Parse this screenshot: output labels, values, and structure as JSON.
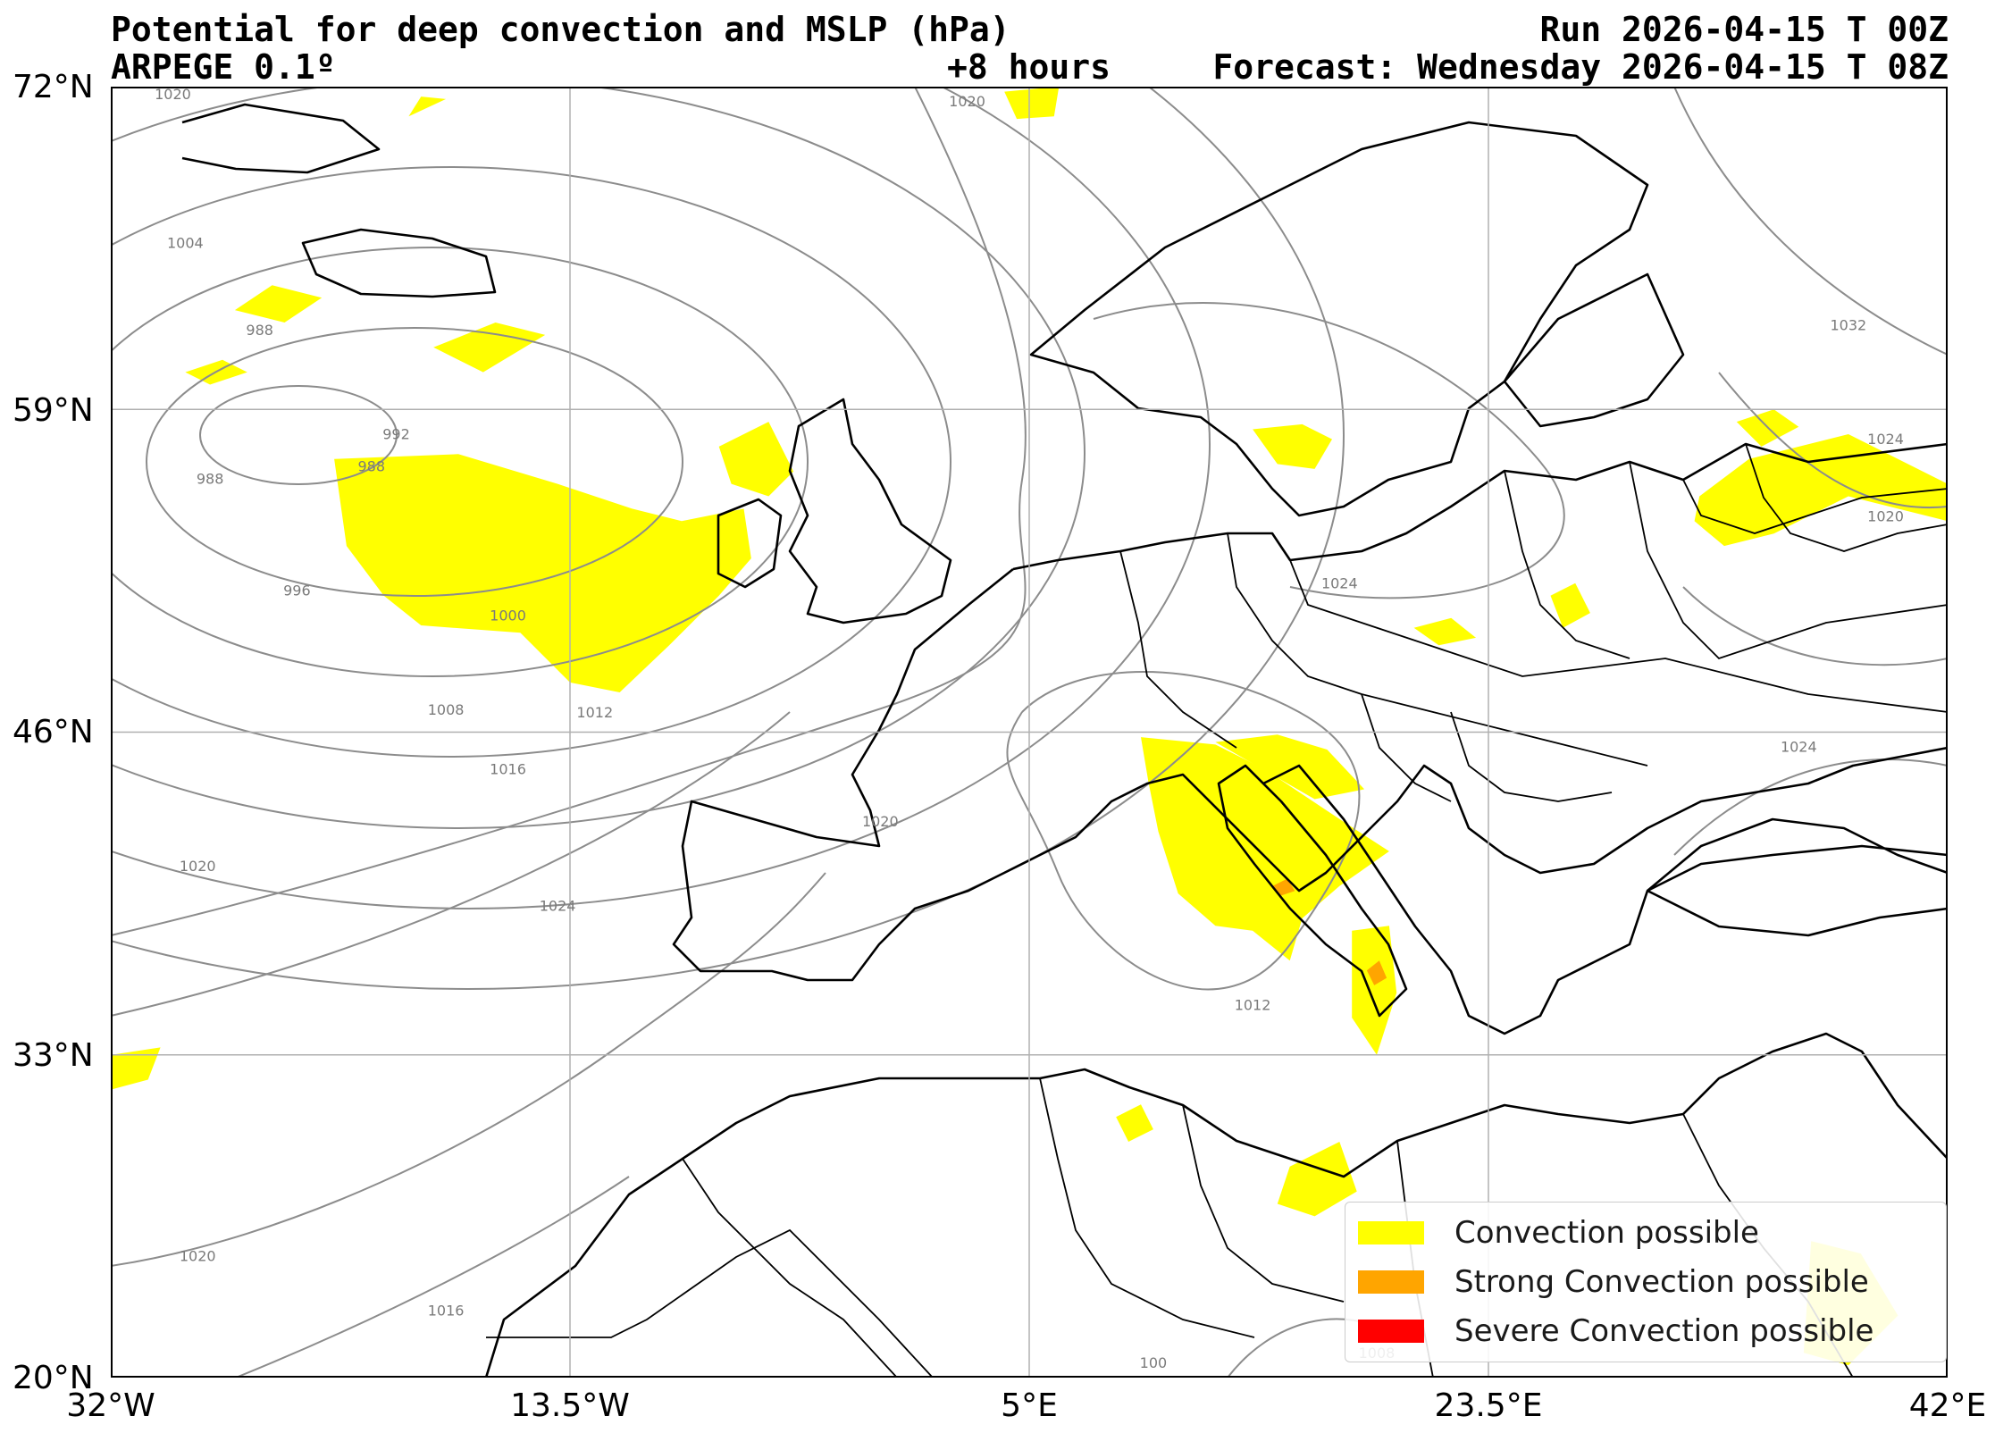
{
  "header": {
    "title": "Potential for deep convection and MSLP (hPa)",
    "model": "ARPEGE 0.1º",
    "run": "Run 2026-04-15 T 00Z",
    "lead": "+8 hours",
    "forecast": "Forecast: Wednesday 2026-04-15 T 08Z"
  },
  "map": {
    "extent": {
      "lon_min": -32,
      "lon_max": 42,
      "lat_min": 20,
      "lat_max": 72
    },
    "lat_ticks": [
      {
        "value": 72,
        "label": "72°N"
      },
      {
        "value": 59,
        "label": "59°N"
      },
      {
        "value": 46,
        "label": "46°N"
      },
      {
        "value": 33,
        "label": "33°N"
      },
      {
        "value": 20,
        "label": "20°N"
      }
    ],
    "lon_ticks": [
      {
        "value": -32,
        "label": "32°W"
      },
      {
        "value": -13.5,
        "label": "13.5°W"
      },
      {
        "value": 5,
        "label": "5°E"
      },
      {
        "value": 23.5,
        "label": "23.5°E"
      },
      {
        "value": 42,
        "label": "42°E"
      }
    ],
    "grid": true,
    "colors": {
      "possible": "#ffff00",
      "strong": "#ffa500",
      "severe": "#ff0000",
      "isobar": "#8c8c8c",
      "coast": "#000000",
      "grid": "#b0b0b0"
    },
    "isobar_labels": [
      {
        "text": "1020",
        "lon": -29.5,
        "lat": 71.5
      },
      {
        "text": "1020",
        "lon": 2.5,
        "lat": 71.2
      },
      {
        "text": "1004",
        "lon": -29,
        "lat": 65.5
      },
      {
        "text": "988",
        "lon": -26,
        "lat": 62
      },
      {
        "text": "992",
        "lon": -20.5,
        "lat": 57.8
      },
      {
        "text": "988",
        "lon": -28,
        "lat": 56
      },
      {
        "text": "988",
        "lon": -21.5,
        "lat": 56.5
      },
      {
        "text": "996",
        "lon": -24.5,
        "lat": 51.5
      },
      {
        "text": "1000",
        "lon": -16,
        "lat": 50.5
      },
      {
        "text": "1008",
        "lon": -18.5,
        "lat": 46.7
      },
      {
        "text": "1012",
        "lon": -12.5,
        "lat": 46.6
      },
      {
        "text": "1016",
        "lon": -16,
        "lat": 44.3
      },
      {
        "text": "1020",
        "lon": -28.5,
        "lat": 40.4
      },
      {
        "text": "1024",
        "lon": -14,
        "lat": 38.8
      },
      {
        "text": "1020",
        "lon": -1,
        "lat": 42.2
      },
      {
        "text": "1012",
        "lon": 14,
        "lat": 34.8
      },
      {
        "text": "1024",
        "lon": 17.5,
        "lat": 51.8
      },
      {
        "text": "1032",
        "lon": 38,
        "lat": 62.2
      },
      {
        "text": "1024",
        "lon": 39.5,
        "lat": 57.6
      },
      {
        "text": "1020",
        "lon": 39.5,
        "lat": 54.5
      },
      {
        "text": "1024",
        "lon": 36,
        "lat": 45.2
      },
      {
        "text": "1020",
        "lon": -28.5,
        "lat": 24.7
      },
      {
        "text": "1016",
        "lon": -18.5,
        "lat": 22.5
      },
      {
        "text": "1008",
        "lon": 19,
        "lat": 20.8
      },
      {
        "text": "100",
        "lon": 10,
        "lat": 20.4
      }
    ],
    "convection_areas": [
      {
        "level": "possible",
        "points": [
          [
            -23,
            57
          ],
          [
            -18,
            57.2
          ],
          [
            -14,
            56
          ],
          [
            -11,
            55
          ],
          [
            -9,
            54.5
          ],
          [
            -6.5,
            55
          ],
          [
            -6.2,
            53
          ],
          [
            -7.5,
            51.5
          ],
          [
            -9.5,
            49.5
          ],
          [
            -11.5,
            47.6
          ],
          [
            -13.5,
            48
          ],
          [
            -15.5,
            50
          ],
          [
            -19.5,
            50.3
          ],
          [
            -21,
            51.5
          ],
          [
            -22.5,
            53.5
          ]
        ]
      },
      {
        "level": "possible",
        "points": [
          [
            -7.5,
            57.5
          ],
          [
            -5.5,
            58.5
          ],
          [
            -4.5,
            56.5
          ],
          [
            -5.5,
            55.5
          ],
          [
            -7,
            56
          ]
        ]
      },
      {
        "level": "possible",
        "points": [
          [
            -19,
            61.5
          ],
          [
            -16.5,
            62.5
          ],
          [
            -14.5,
            62
          ],
          [
            -17,
            60.5
          ]
        ]
      },
      {
        "level": "possible",
        "points": [
          [
            -27,
            63
          ],
          [
            -25.5,
            64
          ],
          [
            -23.5,
            63.5
          ],
          [
            -25,
            62.5
          ]
        ]
      },
      {
        "level": "possible",
        "points": [
          [
            -29,
            60.5
          ],
          [
            -27.5,
            61
          ],
          [
            -26.5,
            60.5
          ],
          [
            -28,
            60
          ]
        ]
      },
      {
        "level": "possible",
        "points": [
          [
            -20,
            70.8
          ],
          [
            -19.5,
            71.6
          ],
          [
            -18.5,
            71.5
          ]
        ]
      },
      {
        "level": "possible",
        "points": [
          [
            4,
            71.8
          ],
          [
            6.2,
            72
          ],
          [
            6,
            70.8
          ],
          [
            4.5,
            70.7
          ]
        ]
      },
      {
        "level": "possible",
        "points": [
          [
            14,
            58.2
          ],
          [
            16,
            58.4
          ],
          [
            17.2,
            57.8
          ],
          [
            16.5,
            56.6
          ],
          [
            15,
            56.8
          ]
        ]
      },
      {
        "level": "possible",
        "points": [
          [
            9.5,
            45.8
          ],
          [
            12.5,
            45.5
          ],
          [
            14.5,
            44.5
          ],
          [
            17.5,
            42.5
          ],
          [
            19.5,
            41.2
          ],
          [
            17.5,
            39.8
          ],
          [
            16,
            38.5
          ],
          [
            15.5,
            36.8
          ],
          [
            14,
            38
          ],
          [
            12.5,
            38.2
          ],
          [
            11,
            39.5
          ],
          [
            10.2,
            42
          ],
          [
            9.8,
            44
          ]
        ]
      },
      {
        "level": "possible",
        "points": [
          [
            12.5,
            45.6
          ],
          [
            15,
            45.9
          ],
          [
            17,
            45.3
          ],
          [
            18.5,
            43.7
          ],
          [
            16.5,
            43.3
          ]
        ]
      },
      {
        "level": "possible",
        "points": [
          [
            18,
            38
          ],
          [
            19.5,
            38.2
          ],
          [
            19.8,
            35.5
          ],
          [
            19,
            33
          ],
          [
            18,
            34.5
          ]
        ]
      },
      {
        "level": "possible",
        "points": [
          [
            15.5,
            28.5
          ],
          [
            17.5,
            29.5
          ],
          [
            18.2,
            27.5
          ],
          [
            16.5,
            26.5
          ],
          [
            15,
            27
          ]
        ]
      },
      {
        "level": "possible",
        "points": [
          [
            8.5,
            30.5
          ],
          [
            9.5,
            31
          ],
          [
            10,
            30
          ],
          [
            9,
            29.5
          ]
        ]
      },
      {
        "level": "possible",
        "points": [
          [
            -32,
            33
          ],
          [
            -30,
            33.3
          ],
          [
            -30.5,
            32
          ],
          [
            -32,
            31.6
          ]
        ]
      },
      {
        "level": "possible",
        "points": [
          [
            26,
            51.5
          ],
          [
            27,
            52
          ],
          [
            27.6,
            50.8
          ],
          [
            26.5,
            50.2
          ]
        ]
      },
      {
        "level": "possible",
        "points": [
          [
            32,
            55.5
          ],
          [
            34,
            57
          ],
          [
            38,
            58
          ],
          [
            42,
            56
          ],
          [
            42,
            54.5
          ],
          [
            38,
            55.5
          ],
          [
            35,
            54
          ],
          [
            33,
            53.5
          ],
          [
            31.8,
            54.5
          ]
        ]
      },
      {
        "level": "possible",
        "points": [
          [
            33.5,
            58.5
          ],
          [
            35,
            59
          ],
          [
            36,
            58.3
          ],
          [
            34.5,
            57.5
          ]
        ]
      },
      {
        "level": "possible",
        "points": [
          [
            36.5,
            25.5
          ],
          [
            38.5,
            25
          ],
          [
            40,
            22.5
          ],
          [
            38,
            20.5
          ],
          [
            36.2,
            21
          ]
        ]
      },
      {
        "level": "possible",
        "points": [
          [
            20.5,
            50.2
          ],
          [
            22,
            50.6
          ],
          [
            23,
            49.8
          ],
          [
            21.5,
            49.5
          ]
        ]
      },
      {
        "level": "strong",
        "points": [
          [
            14.8,
            39.8
          ],
          [
            15.4,
            40.1
          ],
          [
            15.7,
            39.6
          ],
          [
            15.1,
            39.4
          ]
        ]
      },
      {
        "level": "strong",
        "points": [
          [
            18.6,
            36.4
          ],
          [
            19.1,
            36.8
          ],
          [
            19.4,
            36.1
          ],
          [
            18.9,
            35.8
          ]
        ]
      }
    ],
    "pressure_lows": [
      {
        "lon": -25.5,
        "lat": 56
      }
    ]
  },
  "legend": {
    "items": [
      {
        "label": "Convection possible",
        "color": "#ffff00"
      },
      {
        "label": "Strong Convection possible",
        "color": "#ffa500"
      },
      {
        "label": "Severe Convection possible",
        "color": "#ff0000"
      }
    ]
  }
}
